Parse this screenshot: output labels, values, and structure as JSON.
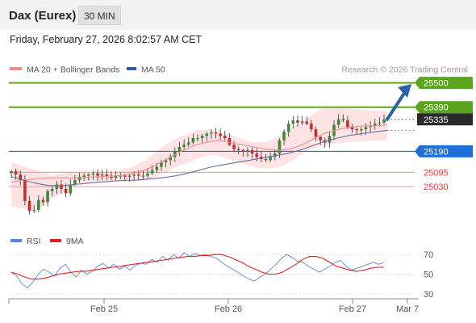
{
  "header": {
    "title": "Dax (Eurex)",
    "timeframe": "30 MIN",
    "datetime": "Friday, February 27, 2026 8:02:57 AM CET"
  },
  "legend": {
    "items": [
      {
        "label": "MA 20 + Bollinger Bands",
        "color": "#f28b8b"
      },
      {
        "label": "MA 50",
        "color": "#2f5aa8"
      }
    ],
    "attribution": "Research © 2026 Trading Central"
  },
  "colors": {
    "resistance": "#5aa51e",
    "support_blue": "#1f6fd9",
    "support_red": "#e53935",
    "current_price_bg": "#2b2b2b",
    "arrow": "#2d5fa8",
    "bollinger_fill": "#fde3e3",
    "ma20": "#f28b8b",
    "ma50": "#6570a8",
    "candle_up": "#3a8a3a",
    "candle_down": "#cc2b2b",
    "rsi": "#5a86d6",
    "rsi_ma": "#e02020"
  },
  "chart_data": [
    {
      "type": "candlestick",
      "yrange": [
        24815,
        25590
      ],
      "x_ticks": [
        "Feb 25",
        "Feb 26",
        "Feb 27",
        "Mar 7"
      ],
      "price_levels": [
        {
          "value": 25500,
          "label": "25500",
          "kind": "resistance"
        },
        {
          "value": 25390,
          "label": "25390",
          "kind": "resistance"
        },
        {
          "value": 25335,
          "label": "25335",
          "kind": "current"
        },
        {
          "value": 25190,
          "label": "25190",
          "kind": "pivot"
        },
        {
          "value": 25095,
          "label": "25095",
          "kind": "support"
        },
        {
          "value": 25030,
          "label": "25030",
          "kind": "support"
        }
      ],
      "close_path": [
        25100,
        25085,
        25060,
        24965,
        24920,
        24925,
        24970,
        24960,
        25010,
        25020,
        25040,
        25020,
        25000,
        25040,
        25060,
        25075,
        25080,
        25085,
        25090,
        25080,
        25085,
        25075,
        25070,
        25080,
        25080,
        25075,
        25080,
        25085,
        25080,
        25080,
        25090,
        25105,
        25120,
        25140,
        25150,
        25165,
        25190,
        25210,
        25220,
        25230,
        25250,
        25250,
        25260,
        25270,
        25275,
        25270,
        25260,
        25250,
        25220,
        25200,
        25195,
        25190,
        25195,
        25180,
        25165,
        25155,
        25150,
        25165,
        25180,
        25240,
        25280,
        25315,
        25330,
        25320,
        25325,
        25315,
        25290,
        25255,
        25240,
        25230,
        25260,
        25310,
        25335,
        25330,
        25300,
        25290,
        25285,
        25290,
        25300,
        25305,
        25315,
        25320,
        25335
      ],
      "ma20_path": [
        25050,
        25060,
        25065,
        25070,
        25070,
        25070,
        25072,
        25075,
        25078,
        25080,
        25090,
        25105,
        25130,
        25160,
        25190,
        25215,
        25230,
        25240,
        25230,
        25220,
        25210,
        25200,
        25195,
        25200,
        25220,
        25250,
        25275,
        25290,
        25300,
        25305,
        25305,
        25310
      ],
      "bb_upper_path": [
        25140,
        25120,
        25100,
        25080,
        25095,
        25100,
        25095,
        25095,
        25100,
        25120,
        25150,
        25200,
        25240,
        25265,
        25290,
        25285,
        25270,
        25250,
        25230,
        25235,
        25260,
        25300,
        25340,
        25380,
        25390,
        25385,
        25380,
        25375,
        25370
      ],
      "bb_lower_path": [
        24940,
        24930,
        24925,
        24975,
        25010,
        25040,
        25050,
        25050,
        25055,
        25050,
        25055,
        25080,
        25110,
        25135,
        25160,
        25175,
        25160,
        25140,
        25120,
        25110,
        25120,
        25150,
        25190,
        25215,
        25225,
        25230,
        25235,
        25238,
        25240
      ],
      "ma50_path": [
        25075,
        25060,
        25045,
        25035,
        25035,
        25040,
        25045,
        25050,
        25055,
        25058,
        25060,
        25065,
        25070,
        25078,
        25090,
        25105,
        25120,
        25130,
        25140,
        25150,
        25160,
        25170,
        25180,
        25195,
        25215,
        25235,
        25250,
        25262,
        25270,
        25278,
        25285
      ]
    },
    {
      "type": "line",
      "title": "",
      "series": [
        {
          "name": "RSI",
          "color": "#5a86d6"
        },
        {
          "name": "9MA",
          "color": "#e02020"
        }
      ],
      "y_ticks": [
        70,
        50,
        30
      ],
      "yrange": [
        20,
        80
      ],
      "rsi_path": [
        52,
        48,
        40,
        36,
        42,
        50,
        55,
        52,
        48,
        56,
        60,
        52,
        47,
        54,
        50,
        53,
        58,
        61,
        56,
        60,
        55,
        58,
        54,
        59,
        61,
        60,
        65,
        62,
        68,
        64,
        70,
        66,
        72,
        68,
        71,
        69,
        70,
        68,
        66,
        62,
        58,
        55,
        52,
        48,
        45,
        43,
        47,
        50,
        55,
        60,
        66,
        70,
        67,
        63,
        62,
        58,
        55,
        52,
        55,
        58,
        62,
        64,
        58,
        54,
        56,
        58,
        60,
        62,
        60,
        62
      ],
      "rsi_ma_path": [
        52,
        50,
        47,
        45,
        45,
        46,
        48,
        50,
        51,
        52,
        53,
        53,
        54,
        55,
        56,
        57,
        58,
        59,
        60,
        61,
        62,
        63,
        64,
        65,
        66,
        67,
        68,
        68,
        69,
        69,
        70,
        70,
        68,
        65,
        62,
        58,
        55,
        52,
        50,
        50,
        52,
        56,
        60,
        65,
        68,
        68,
        66,
        62,
        58,
        56,
        54,
        53,
        54,
        56,
        57,
        57
      ]
    }
  ]
}
